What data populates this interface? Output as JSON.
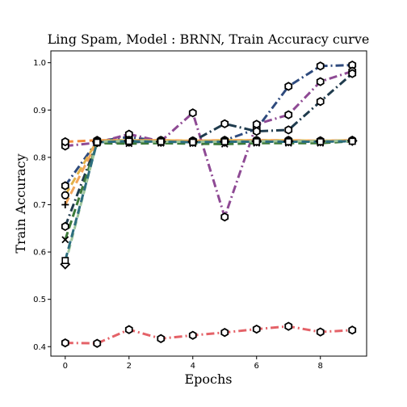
{
  "chart_data": {
    "type": "line",
    "title": "Ling Spam, Model : BRNN, Train Accuracy curve",
    "xlabel": "Epochs",
    "ylabel": "Train Accuracy",
    "xlim": [
      -0.45,
      9.45
    ],
    "ylim": [
      0.38,
      1.025
    ],
    "xticks": [
      0,
      2,
      4,
      6,
      8
    ],
    "yticks": [
      0.4,
      0.5,
      0.6,
      0.7,
      0.8,
      0.9,
      1.0
    ],
    "ytick_labels": [
      "0.4",
      "0.5",
      "0.6",
      "0.7",
      "0.8",
      "0.9",
      "1.0"
    ],
    "grid": false,
    "x": [
      0,
      1,
      2,
      3,
      4,
      5,
      6,
      7,
      8,
      9
    ],
    "series": [
      {
        "color": "#2e4a7d",
        "dash": "10,4,2,4",
        "marker": "hexagon",
        "values": [
          0.74,
          0.834,
          0.843,
          0.834,
          0.834,
          0.836,
          0.86,
          0.95,
          0.993,
          0.995
        ]
      },
      {
        "color": "#8e4a94",
        "dash": "10,4,2,4",
        "marker": "hexagon",
        "values": [
          0.824,
          0.831,
          0.849,
          0.834,
          0.894,
          0.674,
          0.87,
          0.89,
          0.96,
          0.982
        ]
      },
      {
        "color": "#1f3b4d",
        "dash": "10,4,2,4",
        "marker": "hexagon",
        "values": [
          0.654,
          0.832,
          0.832,
          0.834,
          0.834,
          0.871,
          0.855,
          0.858,
          0.918,
          0.977
        ]
      },
      {
        "color": "#e46268",
        "dash": "10,4,2,4",
        "marker": "hexagon",
        "values": [
          0.408,
          0.407,
          0.436,
          0.417,
          0.424,
          0.43,
          0.437,
          0.443,
          0.431,
          0.435
        ]
      },
      {
        "color": "#f08b3a",
        "dash": "10,5",
        "marker": "hexagon",
        "values": [
          0.833,
          0.836,
          0.836,
          0.836,
          0.835,
          0.836,
          0.836,
          0.836,
          0.835,
          0.836
        ]
      },
      {
        "color": "#e2b34a",
        "dash": "10,5",
        "marker": "circle",
        "values": [
          0.72,
          0.835,
          0.836,
          0.836,
          0.835,
          0.836,
          0.836,
          0.836,
          0.835,
          0.836
        ]
      },
      {
        "color": "#f2a65a",
        "dash": "10,5",
        "marker": "plus",
        "values": [
          0.7,
          0.833,
          0.835,
          0.835,
          0.834,
          0.835,
          0.835,
          0.835,
          0.834,
          0.835
        ]
      },
      {
        "color": "#3d7a3a",
        "dash": "10,5",
        "marker": "x",
        "values": [
          0.626,
          0.83,
          0.829,
          0.83,
          0.829,
          0.828,
          0.83,
          0.83,
          0.83,
          0.834
        ]
      },
      {
        "color": "#9cc49a",
        "dash": "10,5",
        "marker": "diamond",
        "values": [
          0.574,
          0.833,
          0.835,
          0.833,
          0.833,
          0.833,
          0.834,
          0.834,
          0.834,
          0.835
        ]
      },
      {
        "color": "#2d6e7e",
        "dash": "10,5",
        "marker": "square",
        "values": [
          0.582,
          0.832,
          0.834,
          0.833,
          0.832,
          0.833,
          0.833,
          0.833,
          0.833,
          0.834
        ]
      }
    ]
  }
}
